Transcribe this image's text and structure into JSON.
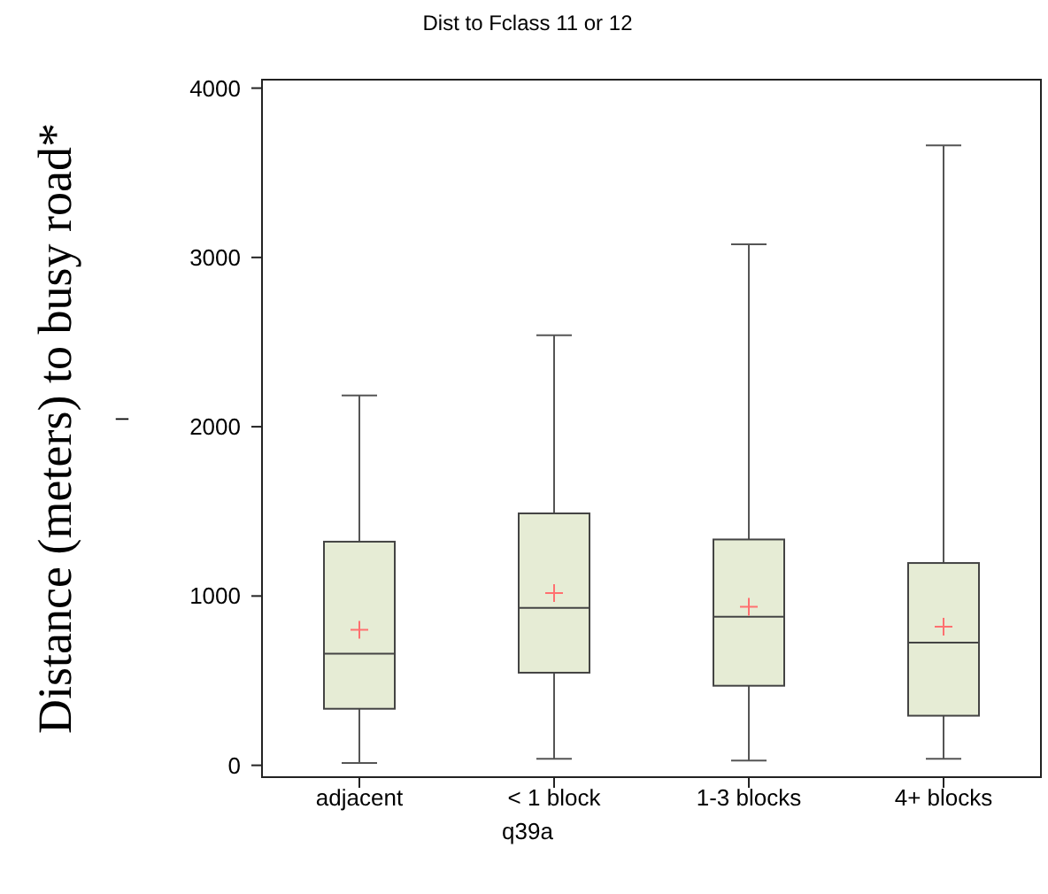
{
  "chart_data": {
    "type": "box",
    "title": "Dist to Fclass 11 or 12",
    "xlabel": "q39a",
    "ylabel": "Distance (meters) to busy road*",
    "annotations": [
      "–"
    ],
    "categories": [
      "adjacent",
      "< 1 block",
      "1-3 blocks",
      "4+ blocks"
    ],
    "boxes": [
      {
        "low": 14,
        "q1": 334,
        "median": 659,
        "q3": 1321,
        "high": 2185,
        "mean": 801
      },
      {
        "low": 38,
        "q1": 547,
        "median": 930,
        "q3": 1488,
        "high": 2540,
        "mean": 1017
      },
      {
        "low": 28,
        "q1": 470,
        "median": 878,
        "q3": 1334,
        "high": 3077,
        "mean": 937
      },
      {
        "low": 38,
        "q1": 293,
        "median": 725,
        "q3": 1195,
        "high": 3662,
        "mean": 819
      }
    ],
    "color": "#e6ecd5",
    "ylim": [
      -70,
      4050
    ],
    "yticks": [
      0,
      1000,
      2000,
      3000,
      4000
    ],
    "grid": false
  }
}
